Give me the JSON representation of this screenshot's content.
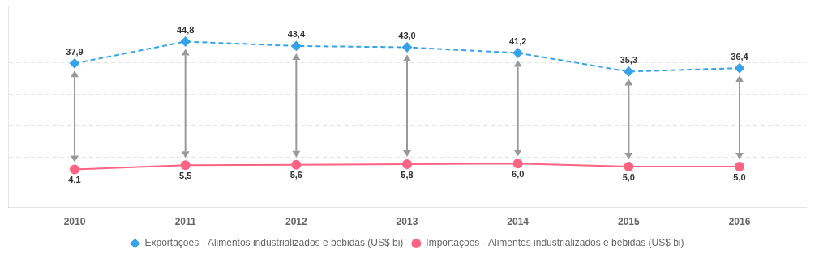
{
  "chart_data": {
    "type": "line",
    "x": [
      2010,
      2011,
      2012,
      2013,
      2014,
      2015,
      2016
    ],
    "xlim": [
      2009.4,
      2016.6
    ],
    "xticks": [
      2010,
      2011,
      2012,
      2013,
      2014,
      2015,
      2016
    ],
    "ylim": [
      -8,
      56
    ],
    "yticks": [
      8,
      18,
      28,
      38,
      48
    ],
    "grid": true,
    "tick_labels": "x",
    "legend": "bottom",
    "data_labels": true,
    "series": [
      {
        "name": "Exportações - Alimentos industrializados e bebidas (US$ bi)",
        "values": [
          37.9,
          44.8,
          43.4,
          43.0,
          41.2,
          35.3,
          36.4
        ],
        "value_labels": [
          "37,9",
          "44,8",
          "43,4",
          "43,0",
          "41,2",
          "35,3",
          "36,4"
        ],
        "marker": "diamond",
        "line_style": "dashed"
      },
      {
        "name": "Importações - Alimentos industrializados e bebidas (US$ bi)",
        "values": [
          4.1,
          5.5,
          5.6,
          5.8,
          6.0,
          5.0,
          5.0
        ],
        "value_labels": [
          "4,1",
          "5,5",
          "5,6",
          "5,8",
          "6,0",
          "5,0",
          "5,0"
        ],
        "marker": "circle",
        "line_style": "solid"
      }
    ]
  }
}
